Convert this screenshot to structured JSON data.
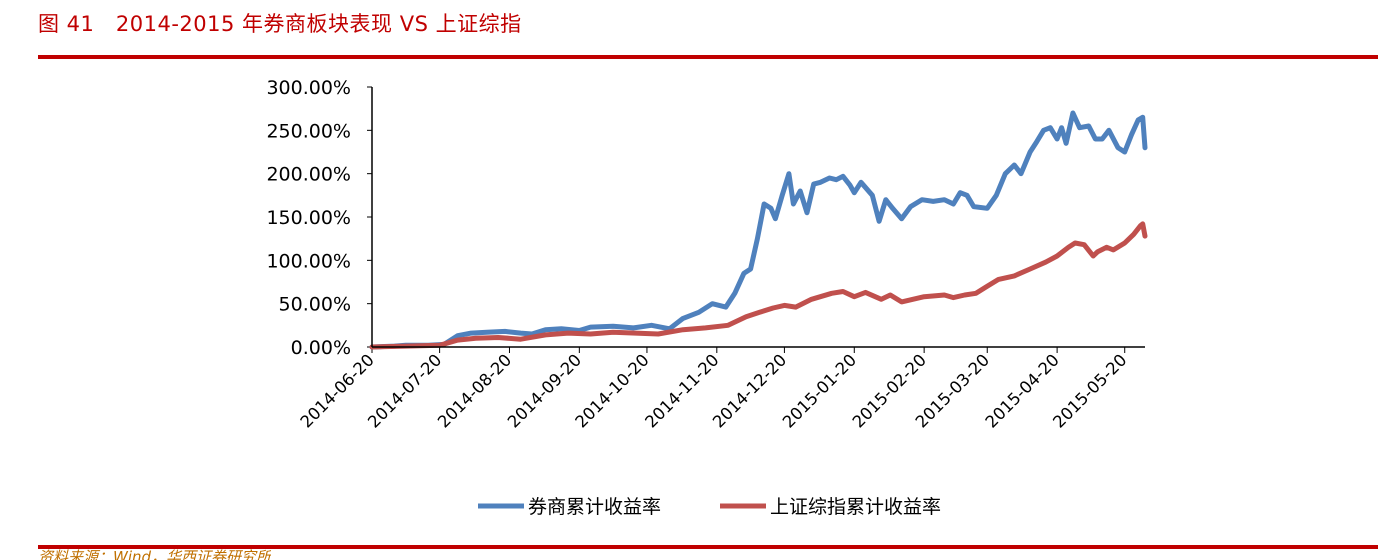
{
  "figure": {
    "title": "图 41　2014-2015 年券商板块表现 VS 上证综指",
    "source": "资料来源：Wind，华西证券研究所"
  },
  "colors": {
    "accent": "#c00000",
    "broker_line": "#4f81bd",
    "index_line": "#c0504d"
  },
  "chart_data": {
    "type": "line",
    "title": "",
    "xlabel": "",
    "ylabel": "",
    "x_range": [
      "2014-06-20",
      "2015-05-29"
    ],
    "ylim": [
      0,
      300
    ],
    "y_ticks": [
      0,
      50,
      100,
      150,
      200,
      250,
      300
    ],
    "y_tick_labels": [
      "0.00%",
      "50.00%",
      "100.00%",
      "150.00%",
      "200.00%",
      "250.00%",
      "300.00%"
    ],
    "x_ticks": [
      "2014-06-20",
      "2014-07-20",
      "2014-08-20",
      "2014-09-20",
      "2014-10-20",
      "2014-11-20",
      "2014-12-20",
      "2015-01-20",
      "2015-02-20",
      "2015-03-20",
      "2015-04-20",
      "2015-05-20"
    ],
    "grid": false,
    "legend_position": "bottom-center",
    "series": [
      {
        "name": "券商累计收益率",
        "color": "#4f81bd",
        "points": [
          [
            "2014-06-20",
            0
          ],
          [
            "2014-06-30",
            1
          ],
          [
            "2014-07-05",
            2
          ],
          [
            "2014-07-15",
            2
          ],
          [
            "2014-07-22",
            3
          ],
          [
            "2014-07-28",
            13
          ],
          [
            "2014-08-03",
            16
          ],
          [
            "2014-08-10",
            17
          ],
          [
            "2014-08-18",
            18
          ],
          [
            "2014-08-25",
            16
          ],
          [
            "2014-08-30",
            15
          ],
          [
            "2014-09-05",
            20
          ],
          [
            "2014-09-12",
            21
          ],
          [
            "2014-09-20",
            19
          ],
          [
            "2014-09-25",
            23
          ],
          [
            "2014-10-05",
            24
          ],
          [
            "2014-10-14",
            22
          ],
          [
            "2014-10-22",
            25
          ],
          [
            "2014-10-30",
            21
          ],
          [
            "2014-11-05",
            33
          ],
          [
            "2014-11-12",
            40
          ],
          [
            "2014-11-18",
            50
          ],
          [
            "2014-11-24",
            46
          ],
          [
            "2014-11-28",
            62
          ],
          [
            "2014-12-02",
            85
          ],
          [
            "2014-12-05",
            90
          ],
          [
            "2014-12-08",
            125
          ],
          [
            "2014-12-11",
            165
          ],
          [
            "2014-12-14",
            160
          ],
          [
            "2014-12-16",
            148
          ],
          [
            "2014-12-19",
            175
          ],
          [
            "2014-12-22",
            200
          ],
          [
            "2014-12-24",
            165
          ],
          [
            "2014-12-27",
            180
          ],
          [
            "2014-12-30",
            155
          ],
          [
            "2015-01-02",
            188
          ],
          [
            "2015-01-05",
            190
          ],
          [
            "2015-01-09",
            195
          ],
          [
            "2015-01-12",
            193
          ],
          [
            "2015-01-15",
            197
          ],
          [
            "2015-01-18",
            187
          ],
          [
            "2015-01-20",
            178
          ],
          [
            "2015-01-23",
            190
          ],
          [
            "2015-01-28",
            175
          ],
          [
            "2015-01-31",
            145
          ],
          [
            "2015-02-03",
            170
          ],
          [
            "2015-02-06",
            160
          ],
          [
            "2015-02-10",
            148
          ],
          [
            "2015-02-14",
            162
          ],
          [
            "2015-02-19",
            170
          ],
          [
            "2015-02-24",
            168
          ],
          [
            "2015-03-01",
            170
          ],
          [
            "2015-03-05",
            165
          ],
          [
            "2015-03-08",
            178
          ],
          [
            "2015-03-11",
            175
          ],
          [
            "2015-03-14",
            162
          ],
          [
            "2015-03-20",
            160
          ],
          [
            "2015-03-24",
            175
          ],
          [
            "2015-03-28",
            200
          ],
          [
            "2015-04-01",
            210
          ],
          [
            "2015-04-04",
            200
          ],
          [
            "2015-04-08",
            225
          ],
          [
            "2015-04-11",
            237
          ],
          [
            "2015-04-14",
            250
          ],
          [
            "2015-04-17",
            253
          ],
          [
            "2015-04-20",
            240
          ],
          [
            "2015-04-22",
            253
          ],
          [
            "2015-04-24",
            235
          ],
          [
            "2015-04-27",
            270
          ],
          [
            "2015-04-30",
            253
          ],
          [
            "2015-05-04",
            255
          ],
          [
            "2015-05-07",
            240
          ],
          [
            "2015-05-10",
            240
          ],
          [
            "2015-05-13",
            250
          ],
          [
            "2015-05-17",
            230
          ],
          [
            "2015-05-20",
            225
          ],
          [
            "2015-05-23",
            245
          ],
          [
            "2015-05-26",
            262
          ],
          [
            "2015-05-28",
            265
          ],
          [
            "2015-05-29",
            230
          ]
        ]
      },
      {
        "name": "上证综指累计收益率",
        "color": "#c0504d",
        "points": [
          [
            "2014-06-20",
            0
          ],
          [
            "2014-07-05",
            1
          ],
          [
            "2014-07-20",
            2
          ],
          [
            "2014-07-28",
            8
          ],
          [
            "2014-08-05",
            10
          ],
          [
            "2014-08-15",
            11
          ],
          [
            "2014-08-25",
            9
          ],
          [
            "2014-09-05",
            14
          ],
          [
            "2014-09-15",
            16
          ],
          [
            "2014-09-25",
            15
          ],
          [
            "2014-10-05",
            17
          ],
          [
            "2014-10-15",
            16
          ],
          [
            "2014-10-25",
            15
          ],
          [
            "2014-11-05",
            20
          ],
          [
            "2014-11-15",
            22
          ],
          [
            "2014-11-25",
            25
          ],
          [
            "2014-12-03",
            35
          ],
          [
            "2014-12-09",
            40
          ],
          [
            "2014-12-15",
            45
          ],
          [
            "2014-12-20",
            48
          ],
          [
            "2014-12-25",
            46
          ],
          [
            "2015-01-01",
            55
          ],
          [
            "2015-01-10",
            62
          ],
          [
            "2015-01-15",
            64
          ],
          [
            "2015-01-20",
            58
          ],
          [
            "2015-01-25",
            63
          ],
          [
            "2015-02-01",
            55
          ],
          [
            "2015-02-05",
            60
          ],
          [
            "2015-02-10",
            52
          ],
          [
            "2015-02-20",
            58
          ],
          [
            "2015-03-01",
            60
          ],
          [
            "2015-03-05",
            57
          ],
          [
            "2015-03-10",
            60
          ],
          [
            "2015-03-15",
            62
          ],
          [
            "2015-03-20",
            70
          ],
          [
            "2015-03-25",
            78
          ],
          [
            "2015-04-01",
            82
          ],
          [
            "2015-04-08",
            90
          ],
          [
            "2015-04-15",
            98
          ],
          [
            "2015-04-20",
            105
          ],
          [
            "2015-04-25",
            115
          ],
          [
            "2015-04-28",
            120
          ],
          [
            "2015-05-02",
            118
          ],
          [
            "2015-05-06",
            105
          ],
          [
            "2015-05-08",
            110
          ],
          [
            "2015-05-12",
            115
          ],
          [
            "2015-05-15",
            112
          ],
          [
            "2015-05-20",
            120
          ],
          [
            "2015-05-24",
            130
          ],
          [
            "2015-05-27",
            140
          ],
          [
            "2015-05-28",
            142
          ],
          [
            "2015-05-29",
            128
          ]
        ]
      }
    ]
  }
}
